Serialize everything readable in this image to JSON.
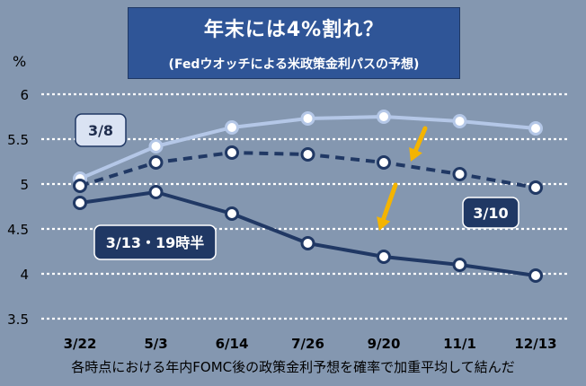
{
  "title": "年末には4%割れ？",
  "subtitle": "(Fedウオッチによる米政策金利パスの予想)",
  "footnote": "各時点における年内FOMC後の政策金利予想を確率で加重平均して結んだ",
  "chart_data": {
    "type": "line",
    "ylabel": "%",
    "ylim": [
      3.5,
      6
    ],
    "yticks": [
      "6",
      "5.5",
      "5",
      "4.5",
      "4",
      "3.5"
    ],
    "categories": [
      "3/22",
      "5/3",
      "6/14",
      "7/26",
      "9/20",
      "11/1",
      "12/13"
    ],
    "grid": true,
    "series": [
      {
        "name": "3/8",
        "values": [
          5.06,
          5.42,
          5.63,
          5.73,
          5.75,
          5.7,
          5.62
        ],
        "color": "#b4c7e7",
        "style": "solid"
      },
      {
        "name": "3/10",
        "values": [
          4.98,
          5.24,
          5.35,
          5.33,
          5.24,
          5.11,
          4.96
        ],
        "color": "#203864",
        "style": "dashed"
      },
      {
        "name": "3/13・19時半",
        "values": [
          4.79,
          4.91,
          4.67,
          4.34,
          4.19,
          4.1,
          3.98
        ],
        "color": "#203864",
        "style": "solid"
      }
    ],
    "annotations": {
      "arrow_color": "#f4b400",
      "label_fill_light": "#dae3f3",
      "label_fill_dark": "#203864"
    }
  }
}
